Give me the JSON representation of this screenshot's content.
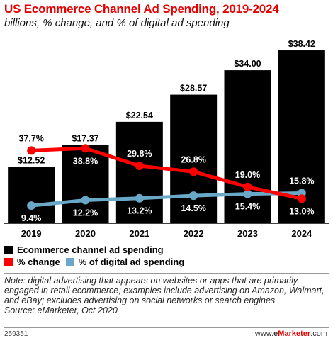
{
  "title": "US Ecommerce Channel Ad Spending, 2019-2024",
  "subtitle": "billions, % change, and % of digital ad spending",
  "chart_data": {
    "type": "bar",
    "categories": [
      "2019",
      "2020",
      "2021",
      "2022",
      "2023",
      "2024"
    ],
    "series": [
      {
        "name": "Ecommerce channel ad spending",
        "type": "bar",
        "values": [
          12.52,
          17.37,
          22.54,
          28.57,
          34.0,
          38.42
        ],
        "labels": [
          "$12.52",
          "$17.37",
          "$22.54",
          "$28.57",
          "$34.00",
          "$38.42"
        ],
        "color": "#000000"
      },
      {
        "name": "% change",
        "type": "line",
        "values": [
          37.7,
          38.8,
          29.8,
          26.8,
          19.0,
          13.0
        ],
        "labels": [
          "37.7%",
          "38.8%",
          "29.8%",
          "26.8%",
          "19.0%",
          "13.0%"
        ],
        "color": "#ff0000"
      },
      {
        "name": "% of digital ad spending",
        "type": "line",
        "values": [
          9.4,
          12.2,
          13.2,
          14.5,
          15.4,
          15.8
        ],
        "labels": [
          "9.4%",
          "12.2%",
          "13.2%",
          "14.5%",
          "15.4%",
          "15.8%"
        ],
        "color": "#6aa8c8"
      }
    ]
  },
  "note": "Note: digital advertising that appears on websites or apps that are primarily engaged in retail ecommerce; examples include advertising on Amazon, Walmart, and eBay; excludes advertising on social networks or search engines",
  "source": "Source: eMarketer, Oct 2020",
  "chart_id": "259351",
  "brand_prefix": "www.",
  "brand_e": "e",
  "brand_rest": "Marketer",
  "brand_suffix": ".com"
}
